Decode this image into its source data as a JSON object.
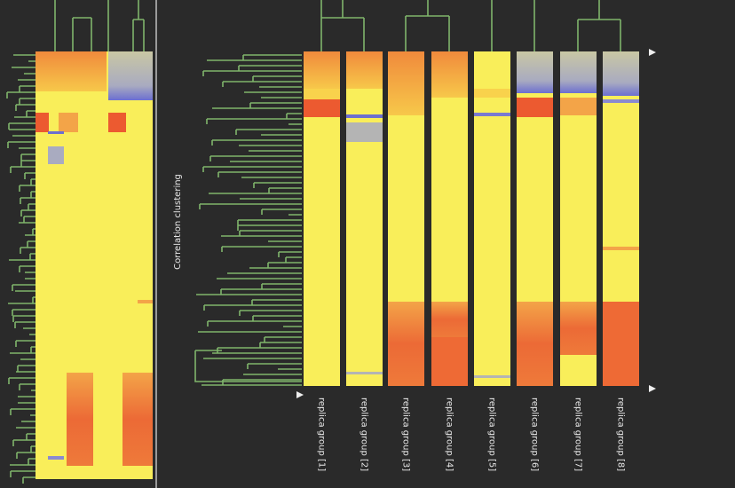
{
  "row_axis_label": "Correlation clustering",
  "column_labels": [
    "replica group [1]",
    "replica group [2]",
    "replica group [3]",
    "replica group [4]",
    "replica group [5]",
    "replica group [6]",
    "replica group [7]",
    "replica group [8]"
  ]
}
